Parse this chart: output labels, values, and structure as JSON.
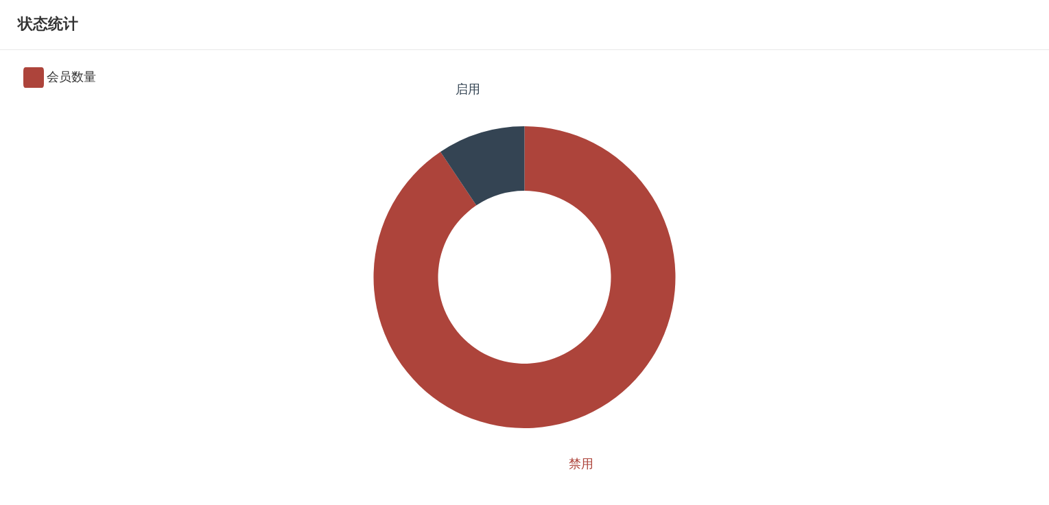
{
  "chart_data": {
    "type": "donut",
    "title": "状态统计",
    "legend": "top left",
    "categories": [
      "禁用",
      "启用"
    ],
    "colors": [
      "#ad443b",
      "#344453"
    ],
    "series": [
      {
        "name": "会员数量",
        "color": "#ad443b",
        "values": [
          90.6,
          9.4
        ]
      }
    ]
  }
}
